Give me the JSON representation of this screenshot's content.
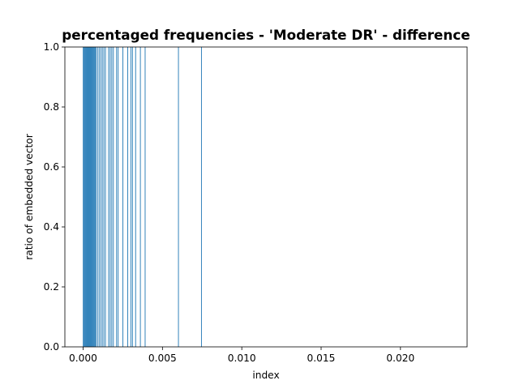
{
  "chart_data": {
    "type": "bar",
    "title": "percentaged frequencies - 'Moderate DR' - difference",
    "xlabel": "index",
    "ylabel": "ratio of embedded vector",
    "xlim": [
      -0.00115,
      0.0242
    ],
    "ylim": [
      0,
      1.0
    ],
    "xticks": [
      0.0,
      0.005,
      0.01,
      0.015,
      0.02
    ],
    "xtick_labels": [
      "0.000",
      "0.005",
      "0.010",
      "0.015",
      "0.020"
    ],
    "yticks": [
      0.0,
      0.2,
      0.4,
      0.6,
      0.8,
      1.0
    ],
    "ytick_labels": [
      "0.0",
      "0.2",
      "0.4",
      "0.6",
      "0.8",
      "1.0"
    ],
    "grid": false,
    "bar_color": "#1f77b4",
    "bar_width": 3e-05,
    "x": [
      0.0,
      5e-05,
      0.0001,
      0.00015,
      0.0002,
      0.00025,
      0.0003,
      0.00035,
      0.0004,
      0.00045,
      0.0005,
      0.00055,
      0.0006,
      0.00065,
      0.0007,
      0.00075,
      0.0008,
      0.0009,
      0.001,
      0.0011,
      0.0012,
      0.0013,
      0.0014,
      0.0016,
      0.0017,
      0.0018,
      0.0019,
      0.0021,
      0.0022,
      0.0025,
      0.0028,
      0.003,
      0.0031,
      0.0033,
      0.0036,
      0.0039,
      0.006,
      0.00745
    ],
    "values": [
      1.0,
      1.0,
      1.0,
      1.0,
      1.0,
      1.0,
      1.0,
      1.0,
      1.0,
      1.0,
      1.0,
      1.0,
      1.0,
      1.0,
      1.0,
      1.0,
      1.0,
      1.0,
      1.0,
      1.0,
      1.0,
      1.0,
      1.0,
      1.0,
      1.0,
      1.0,
      1.0,
      1.0,
      1.0,
      1.0,
      1.0,
      1.0,
      1.0,
      1.0,
      1.0,
      1.0,
      1.0,
      1.0
    ]
  }
}
